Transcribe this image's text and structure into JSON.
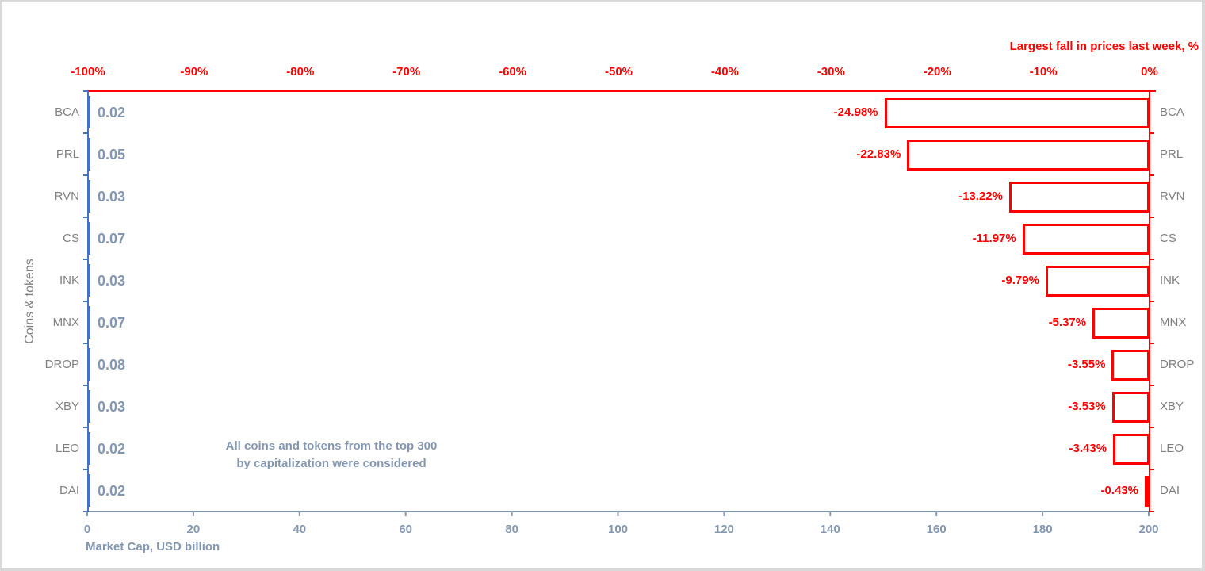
{
  "chart_data": {
    "type": "bar",
    "orientation": "horizontal",
    "title": "",
    "categories": [
      "BCA",
      "PRL",
      "RVN",
      "CS",
      "INK",
      "MNX",
      "DROP",
      "XBY",
      "LEO",
      "DAI"
    ],
    "series": [
      {
        "name": "Largest fall in prices last week, %",
        "axis": "top",
        "color": "#ff0000",
        "style": "outlined",
        "values": [
          -24.98,
          -22.83,
          -13.22,
          -11.97,
          -9.79,
          -5.37,
          -3.55,
          -3.53,
          -3.43,
          -0.43
        ],
        "labels": [
          "-24.98%",
          "-22.83%",
          "-13.22%",
          "-11.97%",
          "-9.79%",
          "-5.37%",
          "-3.55%",
          "-3.53%",
          "-3.43%",
          "-0.43%"
        ]
      },
      {
        "name": "Market Cap, USD billion",
        "axis": "bottom",
        "color": "#4472c4",
        "values": [
          0.02,
          0.05,
          0.03,
          0.07,
          0.03,
          0.07,
          0.08,
          0.03,
          0.02,
          0.02
        ],
        "labels": [
          "0.02",
          "0.05",
          "0.03",
          "0.07",
          "0.03",
          "0.07",
          "0.08",
          "0.03",
          "0.02",
          "0.02"
        ]
      }
    ],
    "top_axis": {
      "label": "Largest fall in prices last week, %",
      "range": [
        -100,
        0
      ],
      "ticks": [
        "-100%",
        "-90%",
        "-80%",
        "-70%",
        "-60%",
        "-50%",
        "-40%",
        "-30%",
        "-20%",
        "-10%",
        "0%"
      ]
    },
    "bottom_axis": {
      "label": "Market Cap,  USD billion",
      "range": [
        0,
        200
      ],
      "ticks": [
        "0",
        "20",
        "40",
        "60",
        "80",
        "100",
        "120",
        "140",
        "160",
        "180",
        "200"
      ]
    },
    "ylabel": "Coins & tokens",
    "annotation": "All coins and tokens from the top 300 by capitalization were considered",
    "grid": false,
    "legend": "none"
  },
  "labels": {
    "top_title": "Largest fall in prices last week, %",
    "bottom_title": "Market Cap,  USD billion",
    "y_title": "Coins & tokens",
    "note": "All coins and tokens from the top 300 by capitalization were considered"
  }
}
